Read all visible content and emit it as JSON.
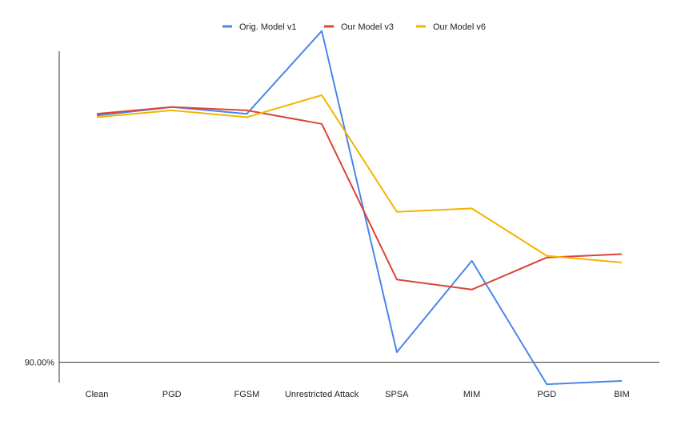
{
  "chart_data": {
    "type": "line",
    "categories": [
      "Clean",
      "PGD",
      "FGSM",
      "Unrestricted Attack",
      "SPSA",
      "MIM",
      "PGD",
      "BIM"
    ],
    "y_tick_labels": [
      "90.00%"
    ],
    "y_tick_values": [
      90.0
    ],
    "ylim": [
      89.4,
      99.2
    ],
    "grid": false,
    "legend_position": "top",
    "series": [
      {
        "name": "Orig. Model v1",
        "color": "#4a86e8",
        "values": [
          97.3,
          97.55,
          97.35,
          99.8,
          90.3,
          93.0,
          89.35,
          89.45
        ]
      },
      {
        "name": "Our Model v3",
        "color": "#db4437",
        "values": [
          97.35,
          97.55,
          97.45,
          97.05,
          92.45,
          92.15,
          93.1,
          93.2
        ]
      },
      {
        "name": "Our Model v6",
        "color": "#f4b400",
        "values": [
          97.25,
          97.45,
          97.25,
          97.9,
          94.45,
          94.55,
          93.15,
          92.95
        ]
      }
    ]
  }
}
